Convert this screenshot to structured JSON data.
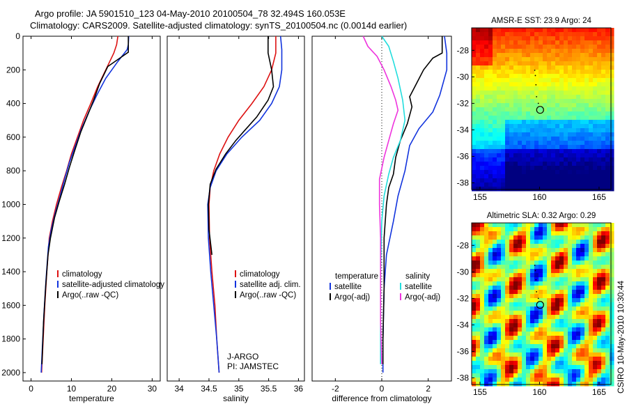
{
  "header": {
    "line1": "Argo profile: JA 5901510_123 04-May-2010 20100504_78 32.494S 160.053E",
    "line2": "Climatology: CARS2009. Satellite-adjusted climatology: synTS_20100504.nc (0.0014d earlier)"
  },
  "footer_stamp": "CSIRO 10-May-2010 10:30:44",
  "colors": {
    "climatology": "#dd1111",
    "satellite": "#1133dd",
    "argo": "#000000",
    "sat_salinity": "#22dddd",
    "argo_salinity": "#ee33dd"
  },
  "chart_data": [
    {
      "id": "temperature",
      "type": "line",
      "xlabel": "temperature",
      "ylabel": "",
      "xlim": [
        -2,
        32
      ],
      "ylim": [
        2050,
        0
      ],
      "xticks": [
        0,
        10,
        20,
        30
      ],
      "yticks": [
        0,
        200,
        400,
        600,
        800,
        1000,
        1200,
        1400,
        1600,
        1800,
        2000
      ],
      "series": [
        {
          "name": "climatology",
          "color": "#dd1111",
          "points": [
            [
              21.5,
              0
            ],
            [
              21.2,
              50
            ],
            [
              20.5,
              100
            ],
            [
              18.5,
              200
            ],
            [
              16.5,
              300
            ],
            [
              14.8,
              400
            ],
            [
              13.0,
              500
            ],
            [
              11.5,
              600
            ],
            [
              10.0,
              700
            ],
            [
              8.8,
              800
            ],
            [
              7.5,
              900
            ],
            [
              6.3,
              1000
            ],
            [
              5.3,
              1100
            ],
            [
              4.5,
              1200
            ],
            [
              3.9,
              1400
            ],
            [
              3.4,
              1600
            ],
            [
              3.0,
              1800
            ],
            [
              2.6,
              2000
            ]
          ]
        },
        {
          "name": "satellite-adjusted climatology",
          "color": "#1133dd",
          "points": [
            [
              24.2,
              0
            ],
            [
              24.1,
              50
            ],
            [
              23.8,
              80
            ],
            [
              21.5,
              150
            ],
            [
              18.5,
              250
            ],
            [
              16.3,
              350
            ],
            [
              14.3,
              450
            ],
            [
              12.5,
              550
            ],
            [
              11.0,
              650
            ],
            [
              9.5,
              750
            ],
            [
              8.3,
              850
            ],
            [
              7.2,
              950
            ],
            [
              6.0,
              1050
            ],
            [
              5.0,
              1150
            ],
            [
              4.3,
              1250
            ],
            [
              3.7,
              1450
            ],
            [
              3.2,
              1650
            ],
            [
              2.8,
              1850
            ],
            [
              2.5,
              2000
            ]
          ]
        },
        {
          "name": "Argo(..raw -QC)",
          "color": "#000000",
          "points": [
            [
              24.1,
              0
            ],
            [
              24.1,
              95
            ],
            [
              22.0,
              130
            ],
            [
              19.0,
              180
            ],
            [
              17.0,
              280
            ],
            [
              15.5,
              380
            ],
            [
              14.0,
              470
            ],
            [
              12.3,
              570
            ],
            [
              10.8,
              680
            ],
            [
              9.5,
              780
            ],
            [
              8.3,
              880
            ],
            [
              7.0,
              980
            ],
            [
              5.8,
              1080
            ],
            [
              4.8,
              1200
            ],
            [
              4.2,
              1300
            ],
            [
              3.6,
              1500
            ],
            [
              3.1,
              1700
            ],
            [
              2.7,
              1950
            ]
          ]
        }
      ],
      "legend": [
        "climatology",
        "satellite-adjusted climatology",
        "Argo(..raw -QC)"
      ]
    },
    {
      "id": "salinity",
      "type": "line",
      "xlabel": "salinity",
      "ylabel": "",
      "xlim": [
        33.8,
        36.1
      ],
      "ylim": [
        2050,
        0
      ],
      "xticks": [
        34,
        34.5,
        35,
        35.5,
        36
      ],
      "yticks": [],
      "series": [
        {
          "name": "climatology",
          "color": "#dd1111",
          "points": [
            [
              35.62,
              0
            ],
            [
              35.62,
              100
            ],
            [
              35.55,
              200
            ],
            [
              35.42,
              300
            ],
            [
              35.22,
              400
            ],
            [
              35.0,
              500
            ],
            [
              34.82,
              600
            ],
            [
              34.68,
              700
            ],
            [
              34.58,
              800
            ],
            [
              34.52,
              900
            ],
            [
              34.5,
              1000
            ],
            [
              34.51,
              1200
            ],
            [
              34.55,
              1400
            ],
            [
              34.6,
              1600
            ],
            [
              34.63,
              1800
            ],
            [
              34.67,
              2000
            ]
          ]
        },
        {
          "name": "satellite adj. clim.",
          "color": "#1133dd",
          "points": [
            [
              35.7,
              0
            ],
            [
              35.72,
              80
            ],
            [
              35.72,
              200
            ],
            [
              35.68,
              300
            ],
            [
              35.55,
              400
            ],
            [
              35.35,
              500
            ],
            [
              35.05,
              600
            ],
            [
              34.8,
              700
            ],
            [
              34.62,
              800
            ],
            [
              34.52,
              900
            ],
            [
              34.48,
              1000
            ],
            [
              34.49,
              1200
            ],
            [
              34.53,
              1400
            ],
            [
              34.58,
              1600
            ],
            [
              34.63,
              1800
            ],
            [
              34.67,
              2000
            ]
          ]
        },
        {
          "name": "Argo(..raw -QC)",
          "color": "#000000",
          "points": [
            [
              35.49,
              0
            ],
            [
              35.49,
              100
            ],
            [
              35.55,
              200
            ],
            [
              35.58,
              300
            ],
            [
              35.49,
              380
            ],
            [
              35.3,
              480
            ],
            [
              35.1,
              560
            ],
            [
              34.95,
              620
            ],
            [
              34.78,
              700
            ],
            [
              34.62,
              790
            ],
            [
              34.52,
              880
            ],
            [
              34.49,
              1000
            ],
            [
              34.5,
              1150
            ],
            [
              34.55,
              1300
            ]
          ]
        }
      ],
      "legend": [
        "climatology",
        "satellite adj. clim.",
        "Argo(..raw -QC)"
      ],
      "annotation": [
        "J-ARGO",
        "PI: JAMSTEC"
      ]
    },
    {
      "id": "difference",
      "type": "line",
      "xlabel": "difference from climatology",
      "ylabel": "",
      "xlim": [
        -3,
        3
      ],
      "ylim": [
        2050,
        0
      ],
      "xticks": [
        -2,
        0,
        2
      ],
      "yticks": [],
      "series": [
        {
          "name": "temperature satellite",
          "color": "#1133dd",
          "points": [
            [
              2.7,
              0
            ],
            [
              2.8,
              100
            ],
            [
              2.8,
              200
            ],
            [
              2.5,
              350
            ],
            [
              2.2,
              450
            ],
            [
              1.6,
              550
            ],
            [
              1.2,
              650
            ],
            [
              1.0,
              800
            ],
            [
              0.7,
              950
            ],
            [
              0.5,
              1100
            ],
            [
              0.2,
              1300
            ],
            [
              0.1,
              1500
            ],
            [
              0.05,
              1800
            ],
            [
              0.05,
              2000
            ]
          ]
        },
        {
          "name": "temperature Argo(-adj)",
          "color": "#000000",
          "points": [
            [
              2.6,
              0
            ],
            [
              2.6,
              100
            ],
            [
              2.2,
              130
            ],
            [
              1.8,
              200
            ],
            [
              1.5,
              280
            ],
            [
              1.2,
              360
            ],
            [
              1.3,
              420
            ],
            [
              1.1,
              520
            ],
            [
              0.8,
              620
            ],
            [
              0.6,
              720
            ],
            [
              0.5,
              820
            ],
            [
              0.3,
              900
            ],
            [
              0.2,
              1000
            ],
            [
              0.1,
              1200
            ],
            [
              0.1,
              1500
            ],
            [
              0.05,
              1800
            ],
            [
              0.05,
              1950
            ]
          ]
        },
        {
          "name": "salinity satellite",
          "color": "#22dddd",
          "points": [
            [
              0.0,
              0
            ],
            [
              0.3,
              60
            ],
            [
              0.5,
              150
            ],
            [
              0.7,
              250
            ],
            [
              0.9,
              380
            ],
            [
              1.0,
              500
            ],
            [
              0.8,
              620
            ],
            [
              0.5,
              720
            ],
            [
              0.3,
              820
            ],
            [
              0.1,
              950
            ],
            [
              0.0,
              1100
            ],
            [
              -0.05,
              1400
            ],
            [
              -0.05,
              1700
            ],
            [
              -0.05,
              1950
            ]
          ]
        },
        {
          "name": "salinity Argo(-adj)",
          "color": "#ee33dd",
          "points": [
            [
              -0.8,
              0
            ],
            [
              -0.6,
              60
            ],
            [
              -0.2,
              120
            ],
            [
              0.1,
              200
            ],
            [
              0.4,
              300
            ],
            [
              0.6,
              380
            ],
            [
              0.7,
              440
            ],
            [
              0.5,
              520
            ],
            [
              0.3,
              620
            ],
            [
              0.1,
              720
            ],
            [
              -0.1,
              850
            ],
            [
              -0.1,
              1000
            ],
            [
              -0.05,
              1200
            ],
            [
              -0.05,
              1500
            ],
            [
              -0.05,
              1700
            ],
            [
              0.0,
              1950
            ]
          ]
        }
      ],
      "legend": {
        "temperature_header": "temperature",
        "salinity_header": "salinity",
        "items": [
          "satellite",
          "Argo(-adj)",
          "satellite",
          "Argo(-adj)"
        ]
      }
    },
    {
      "id": "sst_map",
      "type": "heatmap",
      "title": "AMSR-E SST: 23.9 Argo: 24",
      "xlim": [
        154.3,
        166
      ],
      "ylim": [
        -38.5,
        -26.3
      ],
      "xticks": [
        155,
        160,
        165
      ],
      "yticks": [
        -28,
        -30,
        -32,
        -34,
        -36,
        -38
      ],
      "marker": [
        160.05,
        -32.49
      ]
    },
    {
      "id": "sla_map",
      "type": "heatmap",
      "title": "Altimetric SLA: 0.32 Argo: 0.29",
      "xlim": [
        154.3,
        166
      ],
      "ylim": [
        -38.5,
        -26.3
      ],
      "xticks": [
        155,
        160,
        165
      ],
      "yticks": [
        -28,
        -30,
        -32,
        -34,
        -36,
        -38
      ],
      "marker": [
        160.05,
        -32.49
      ]
    }
  ]
}
